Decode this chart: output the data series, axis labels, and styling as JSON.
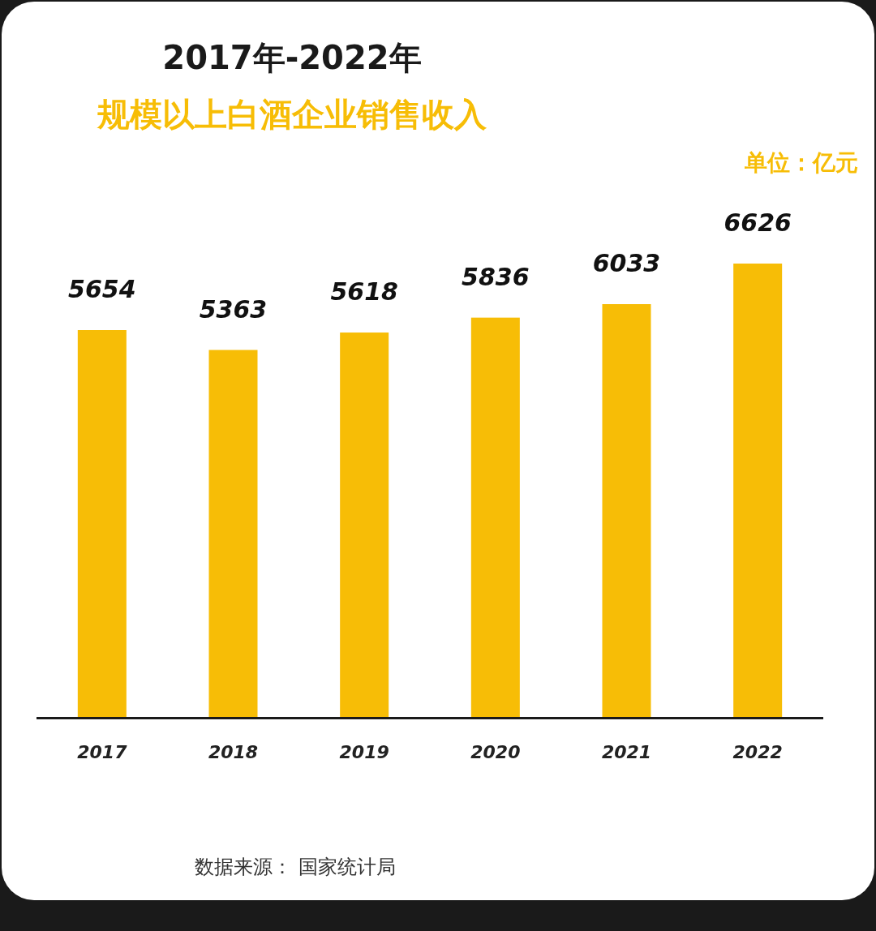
{
  "chart_data": {
    "type": "bar",
    "title": "2017年-2022年",
    "subtitle": "规模以上白酒企业销售收入",
    "ylabel": "单位：亿元",
    "categories": [
      "2017",
      "2018",
      "2019",
      "2020",
      "2021",
      "2022"
    ],
    "values": [
      5654,
      5363,
      5618,
      5836,
      6033,
      6626
    ],
    "color": "#f7bd06",
    "data_labels": true,
    "annotations": [
      "数据来源：  国家统计局"
    ]
  }
}
